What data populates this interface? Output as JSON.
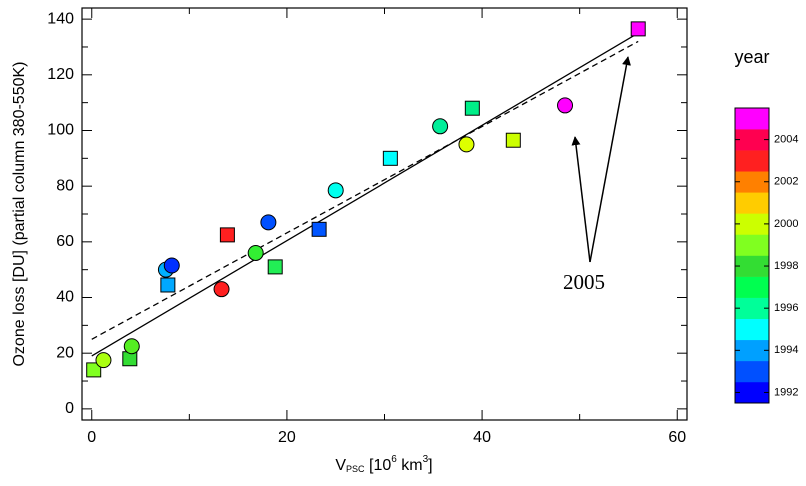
{
  "chart_data": {
    "type": "scatter",
    "xlabel_parts": [
      "V",
      "PSC",
      " [10",
      "6",
      " km",
      "3",
      "]"
    ],
    "xlabel_styles": [
      "normal",
      "sub",
      "normal",
      "sup",
      "normal",
      "sup",
      "normal"
    ],
    "ylabel": "Ozone loss [DU] (partial column 380-550K)",
    "xlim": [
      -1,
      61
    ],
    "ylim": [
      -4,
      144
    ],
    "xticks": [
      0,
      20,
      40,
      60
    ],
    "xminor": [
      10,
      30,
      50
    ],
    "yticks": [
      0,
      20,
      40,
      60,
      80,
      100,
      120,
      140
    ],
    "yminor": [
      10,
      30,
      50,
      70,
      90,
      110,
      130
    ],
    "series": [
      {
        "marker": "square",
        "x": [
          0.2,
          3.9,
          7.8,
          13.9,
          18.8,
          23.3,
          30.6,
          39,
          43.2,
          56
        ],
        "values": [
          14,
          18,
          44.5,
          62.5,
          51,
          64.5,
          90,
          108,
          96.5,
          136.5
        ],
        "colors": [
          "#80ff20",
          "#33dd33",
          "#00a8ff",
          "#ff2020",
          "#22ee55",
          "#0055ff",
          "#00ffff",
          "#00ee88",
          "#ccff00",
          "#ff00ff"
        ]
      },
      {
        "marker": "circle",
        "x": [
          1.2,
          4.1,
          7.6,
          8.2,
          13.3,
          16.8,
          18.1,
          25,
          35.7,
          38.4,
          48.5
        ],
        "values": [
          17.5,
          22.5,
          50,
          51.5,
          43,
          56,
          67,
          78.5,
          101.5,
          95,
          109
        ],
        "colors": [
          "#aaff10",
          "#55ee22",
          "#00b0ff",
          "#0030ff",
          "#ff2020",
          "#33ee33",
          "#0050ff",
          "#00ffee",
          "#00ee99",
          "#ddff00",
          "#ff00ff"
        ]
      }
    ],
    "fit_lines": [
      {
        "style": "solid",
        "x": [
          0,
          56
        ],
        "values": [
          19,
          135
        ]
      },
      {
        "style": "dashed",
        "x": [
          0,
          56
        ],
        "values": [
          25,
          132
        ]
      }
    ],
    "annotation": "2005",
    "colorbar": {
      "title": "year",
      "lim": [
        1991.5,
        2005.5
      ],
      "ticks": [
        1992,
        1994,
        1996,
        1998,
        2000,
        2002,
        2004
      ],
      "colors": [
        "#0000ff",
        "#0050ff",
        "#00a0ff",
        "#00ffff",
        "#00ff99",
        "#00ff50",
        "#33dd33",
        "#80ff20",
        "#ccff00",
        "#ffcc00",
        "#ff8000",
        "#ff2020",
        "#ff0050",
        "#ff00ff"
      ]
    }
  }
}
